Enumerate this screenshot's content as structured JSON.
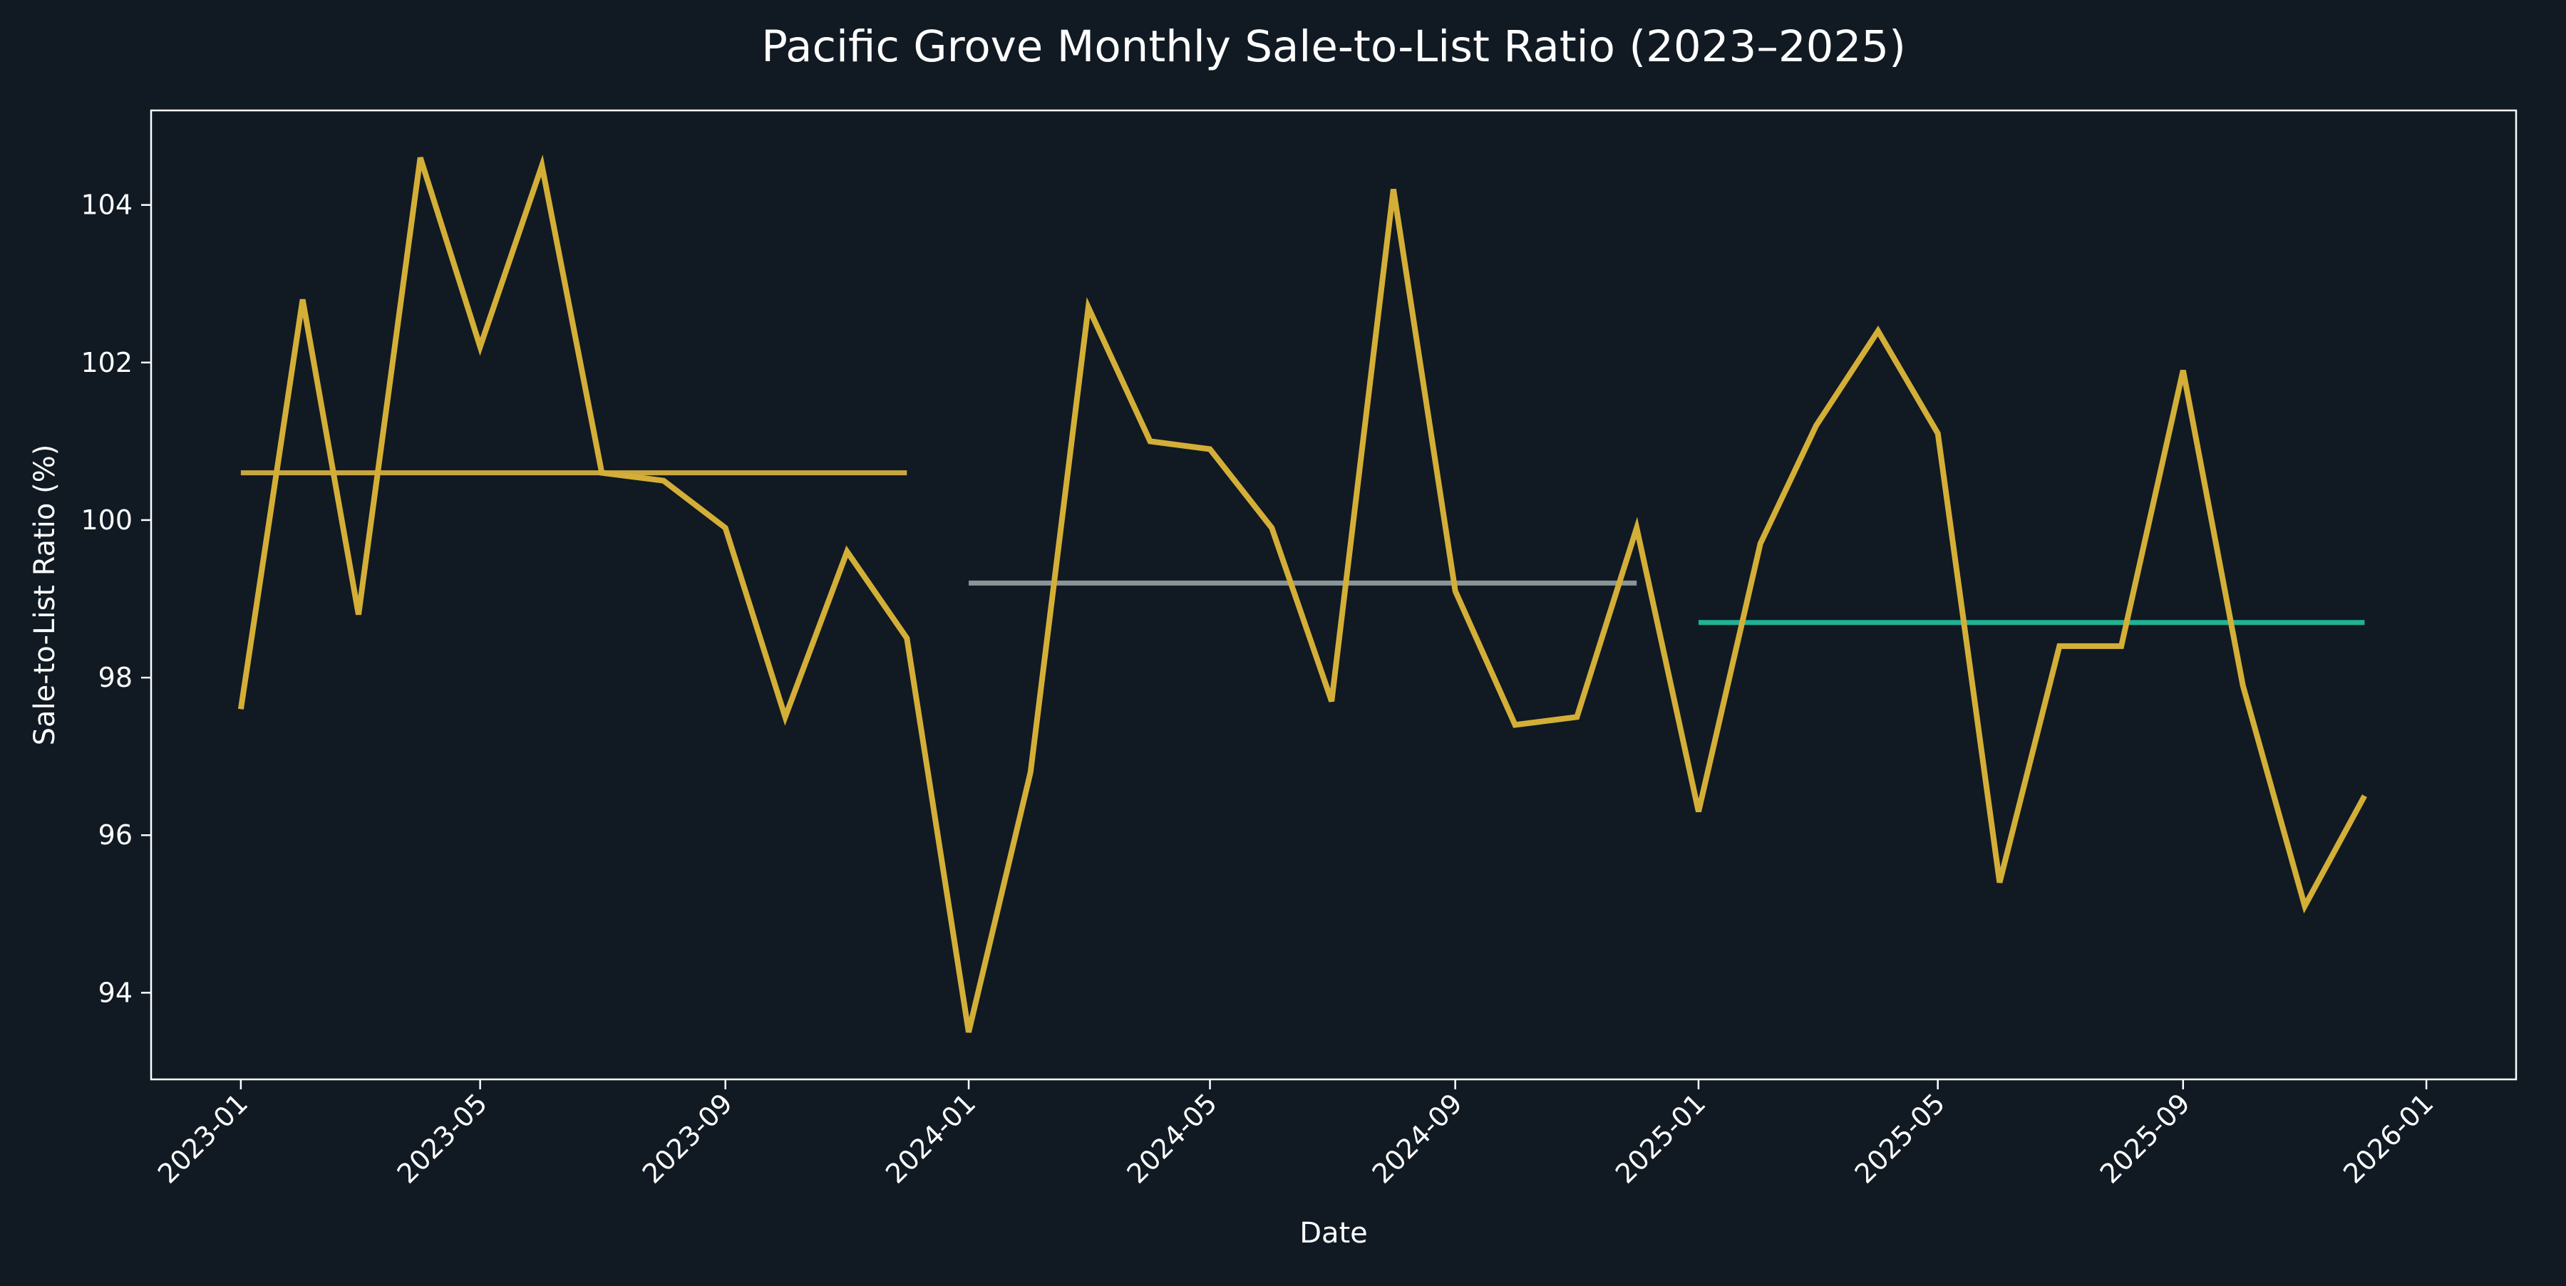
{
  "chart_data": {
    "type": "line",
    "title": "Pacific Grove Monthly Sale-to-List Ratio (2023–2025)",
    "xlabel": "Date",
    "ylabel": "Sale-to-List Ratio (%)",
    "x_ticks": [
      "2023-01",
      "2023-05",
      "2023-09",
      "2024-01",
      "2024-05",
      "2024-09",
      "2025-01",
      "2025-05",
      "2025-09",
      "2026-01"
    ],
    "y_ticks": [
      94,
      96,
      98,
      100,
      102,
      104
    ],
    "ylim": [
      92.9,
      105.2
    ],
    "xlim": [
      "2022-11-17",
      "2026-02-15"
    ],
    "grid": false,
    "series": [
      {
        "color": "#d4af37",
        "x": [
          "2023-01",
          "2023-02",
          "2023-03",
          "2023-04",
          "2023-05",
          "2023-06",
          "2023-07",
          "2023-08",
          "2023-09",
          "2023-10",
          "2023-11",
          "2023-12",
          "2024-01",
          "2024-02",
          "2024-03",
          "2024-04",
          "2024-05",
          "2024-06",
          "2024-07",
          "2024-08",
          "2024-09",
          "2024-10",
          "2024-11",
          "2024-12",
          "2025-01",
          "2025-02",
          "2025-03",
          "2025-04",
          "2025-05",
          "2025-06",
          "2025-07",
          "2025-08",
          "2025-09",
          "2025-10",
          "2025-11",
          "2025-12"
        ],
        "values": [
          97.6,
          102.8,
          98.8,
          104.6,
          102.2,
          104.5,
          100.6,
          100.5,
          99.9,
          97.5,
          99.6,
          98.5,
          93.5,
          96.8,
          102.7,
          101.0,
          100.9,
          99.9,
          97.7,
          104.2,
          99.1,
          97.4,
          97.5,
          99.9,
          96.3,
          99.7,
          101.2,
          102.4,
          101.1,
          95.4,
          98.4,
          98.4,
          101.9,
          97.9,
          95.1,
          96.5
        ]
      }
    ],
    "reference_lines": [
      {
        "x_start": "2023-01",
        "x_end": "2023-12",
        "value": 100.6,
        "color": "#c9a640"
      },
      {
        "x_start": "2024-01",
        "x_end": "2024-12",
        "value": 99.2,
        "color": "#8a9597"
      },
      {
        "x_start": "2025-01",
        "x_end": "2025-12",
        "value": 98.7,
        "color": "#1fb394"
      }
    ]
  }
}
